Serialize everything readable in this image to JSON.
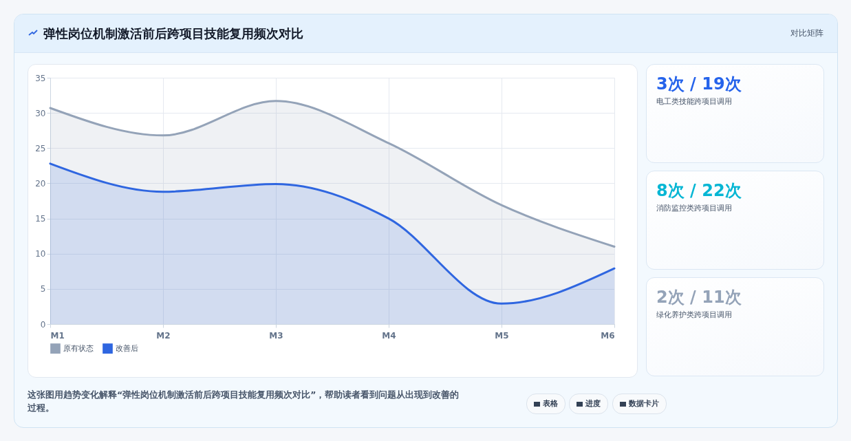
{
  "chart_data": [
    {
      "type": "area",
      "title": "弹性岗位机制激活前后跨项目技能复用频次对比",
      "categories": [
        "M1",
        "M2",
        "M3",
        "M4",
        "M5",
        "M6"
      ],
      "series": [
        {
          "name": "原有状态",
          "color": "#94a3b8",
          "values": [
            30.7,
            26.8,
            31.7,
            25.7,
            16.9,
            11
          ]
        },
        {
          "name": "改善后",
          "color": "#2f66e0",
          "values": [
            22.8,
            18.8,
            19.9,
            15,
            2.9,
            7.9
          ]
        }
      ],
      "ylim": [
        0,
        35
      ],
      "yticks": [
        0,
        5,
        10,
        15,
        20,
        25,
        30,
        35
      ],
      "grid": true,
      "legend": "bottom",
      "annotations": [
        "这张图用趋势变化解释“弹性岗位机制激活前后跨项目技能复用频次对比”，帮助读者看到问题从出现到改善的过程。",
        "表格",
        "进度",
        "数据卡片"
      ]
    },
    {
      "type": "other",
      "title": "对比矩阵",
      "annotations": [
        "3次 / 19次",
        "电工类技能跨项目调用",
        "8次 / 22次",
        "消防监控类跨项目调用",
        "2次 / 11次",
        "绿化养护类跨项目调用"
      ]
    }
  ]
}
